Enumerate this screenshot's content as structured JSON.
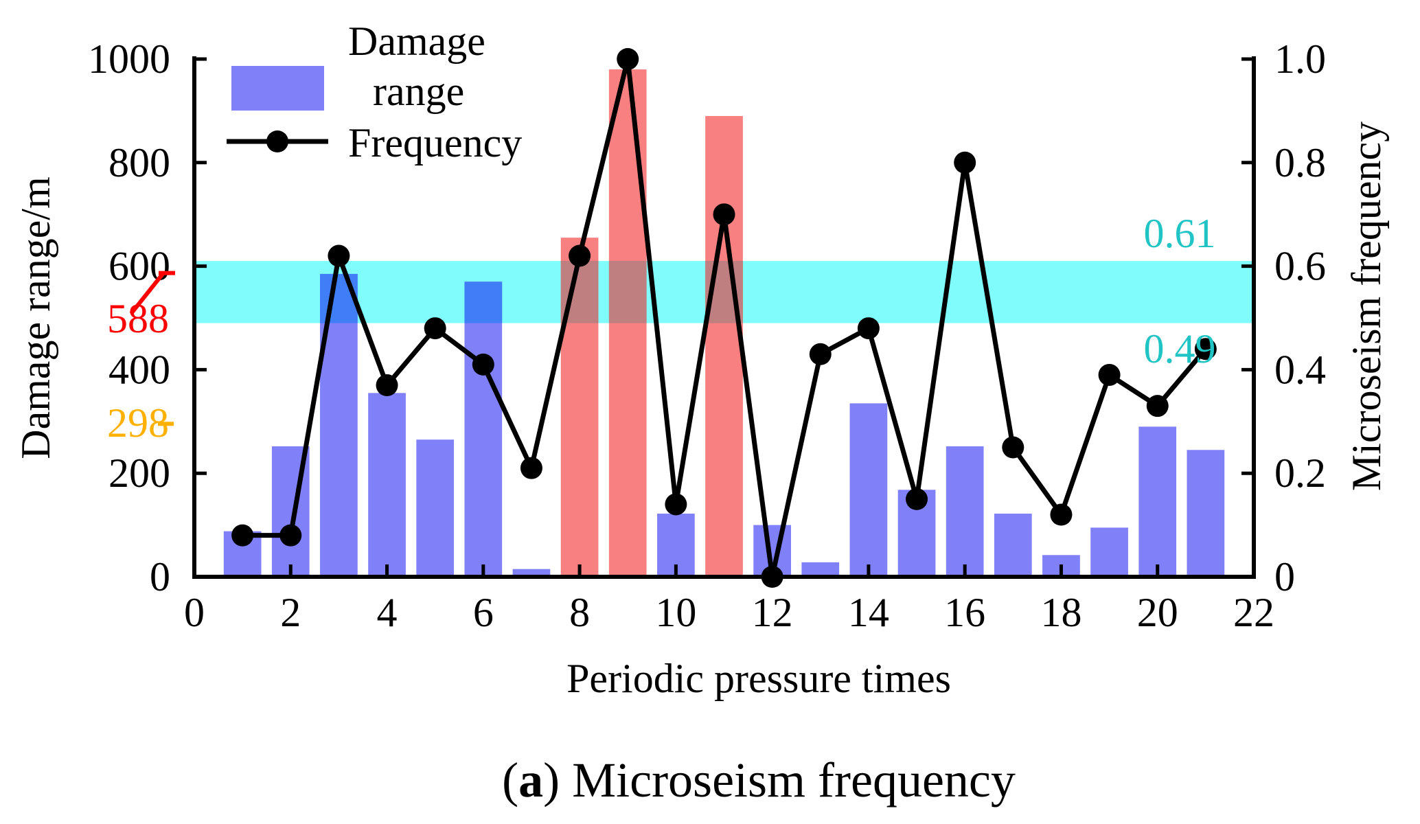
{
  "chart_data": {
    "type": "bar",
    "title": "",
    "caption": {
      "label": "a",
      "text": ") Microseism frequency",
      "open_paren": "("
    },
    "xlabel": "Periodic pressure times",
    "ylabel_left": "Damage range/m",
    "ylabel_right": "Microseism frequency",
    "xlim": [
      0,
      22
    ],
    "ylim_left": [
      0,
      1000
    ],
    "ylim_right": [
      0,
      1.0
    ],
    "x_ticks": [
      "0",
      "2",
      "4",
      "6",
      "8",
      "10",
      "12",
      "14",
      "16",
      "18",
      "20",
      "22"
    ],
    "y_left_ticks": [
      "0",
      "200",
      "400",
      "600",
      "800",
      "1000"
    ],
    "y_right_ticks": [
      "0",
      "0.2",
      "0.4",
      "0.6",
      "0.8",
      "1.0"
    ],
    "legend": {
      "position": "top-left",
      "bar_label_line1": "Damage",
      "bar_label_line2": "range",
      "line_label": "Frequency"
    },
    "series": [
      {
        "name": "Damage range",
        "kind": "bar",
        "axis": "left",
        "x": [
          1,
          2,
          3,
          4,
          5,
          6,
          7,
          8,
          9,
          10,
          11,
          12,
          13,
          14,
          15,
          16,
          17,
          18,
          19,
          20,
          21
        ],
        "values": [
          88,
          252,
          585,
          355,
          265,
          570,
          15,
          655,
          980,
          122,
          890,
          100,
          28,
          335,
          168,
          252,
          122,
          42,
          95,
          290,
          245
        ],
        "highlighted": [
          false,
          false,
          false,
          false,
          false,
          false,
          false,
          true,
          true,
          false,
          true,
          false,
          false,
          false,
          false,
          false,
          false,
          false,
          false,
          false,
          false
        ],
        "color": "#8080f8",
        "highlight_color": "#f88080"
      },
      {
        "name": "Frequency",
        "kind": "line",
        "axis": "right",
        "x": [
          1,
          2,
          3,
          4,
          5,
          6,
          7,
          8,
          9,
          10,
          11,
          12,
          13,
          14,
          15,
          16,
          17,
          18,
          19,
          20,
          21
        ],
        "values": [
          0.08,
          0.08,
          0.62,
          0.37,
          0.48,
          0.41,
          0.21,
          0.62,
          1.0,
          0.14,
          0.7,
          0.0,
          0.43,
          0.48,
          0.15,
          0.8,
          0.25,
          0.12,
          0.39,
          0.33,
          0.44
        ],
        "color": "#000000"
      }
    ],
    "band": {
      "axis": "right",
      "lower": 0.49,
      "upper": 0.61,
      "color": "#80fcfc",
      "lower_label": "0.49",
      "upper_label": "0.61",
      "label_color": "#20c4c4"
    },
    "annotations": [
      {
        "text": "588",
        "value": 588,
        "axis": "left",
        "color": "#ff0000"
      },
      {
        "text": "298",
        "value": 298,
        "axis": "left",
        "color": "#ffb000"
      }
    ]
  }
}
